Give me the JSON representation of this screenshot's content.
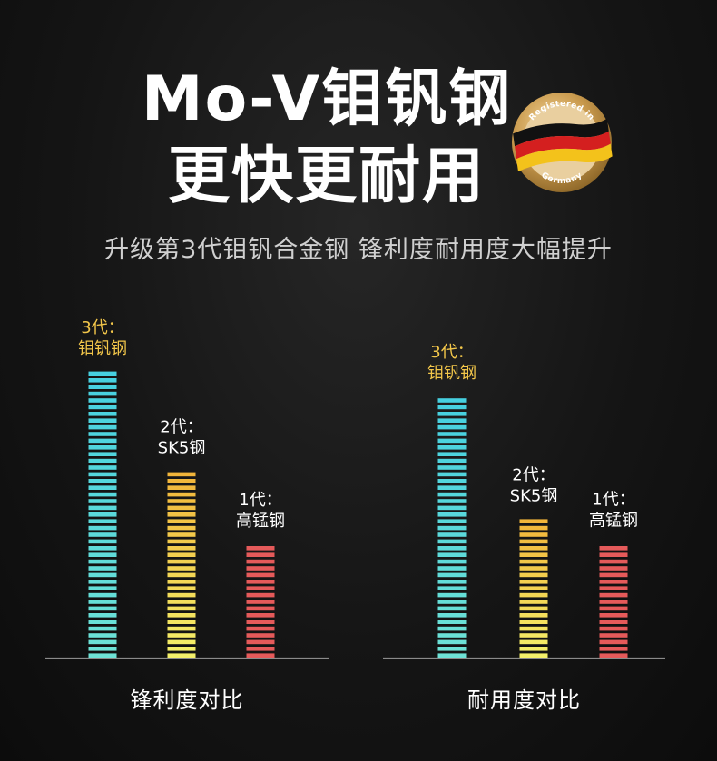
{
  "header": {
    "title_line1": "Mo-V钼钒钢",
    "title_line2": "更快更耐用",
    "subtitle": "升级第3代钼钒合金钢 锋利度耐用度大幅提升"
  },
  "badge": {
    "top_text": "Registered in",
    "bottom_text": "Germany",
    "icon": "germany-flag-seal-icon",
    "ring_color": "#c99a4e",
    "flag_colors": [
      "#111111",
      "#d41f1f",
      "#f3c21b"
    ]
  },
  "chart_data": [
    {
      "type": "bar",
      "title": "锋利度对比",
      "categories": [
        "3代：钼钒钢",
        "2代：SK5钢",
        "1代：高锰钢"
      ],
      "labels": [
        [
          "3代：",
          "钼钒钢"
        ],
        [
          "2代：",
          "SK5钢"
        ],
        [
          "1代：",
          "高锰钢"
        ]
      ],
      "values": [
        100,
        66,
        41
      ],
      "colors": [
        "#48d6e0",
        "#f2c23a",
        "#e55a5a"
      ],
      "label_colors": [
        "#f2c64a",
        "#ffffff",
        "#ffffff"
      ]
    },
    {
      "type": "bar",
      "title": "耐用度对比",
      "categories": [
        "3代：钼钒钢",
        "2代：SK5钢",
        "1代：高锰钢"
      ],
      "labels": [
        [
          "3代：",
          "钼钒钢"
        ],
        [
          "2代：",
          "SK5钢"
        ],
        [
          "1代：",
          "高锰钢"
        ]
      ],
      "values": [
        100,
        54,
        45
      ],
      "colors": [
        "#48d6e0",
        "#f2c23a",
        "#e55a5a"
      ],
      "label_colors": [
        "#f2c64a",
        "#ffffff",
        "#ffffff"
      ]
    }
  ]
}
